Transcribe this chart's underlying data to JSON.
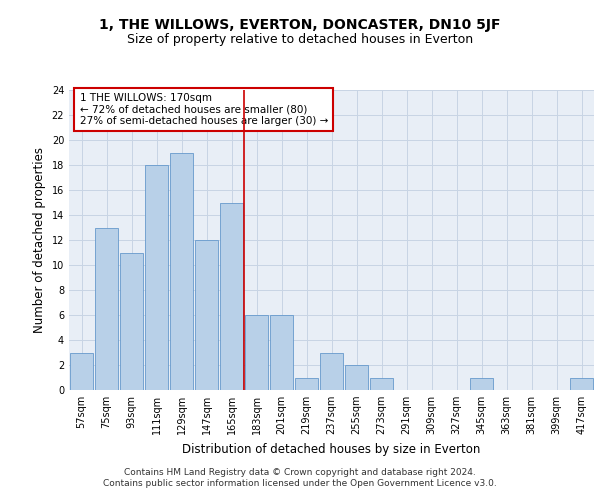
{
  "title": "1, THE WILLOWS, EVERTON, DONCASTER, DN10 5JF",
  "subtitle": "Size of property relative to detached houses in Everton",
  "xlabel": "Distribution of detached houses by size in Everton",
  "ylabel": "Number of detached properties",
  "bar_values": [
    3,
    13,
    11,
    18,
    19,
    12,
    15,
    6,
    6,
    1,
    3,
    2,
    1,
    0,
    0,
    0,
    1,
    0,
    0,
    0,
    1
  ],
  "categories": [
    "57sqm",
    "75sqm",
    "93sqm",
    "111sqm",
    "129sqm",
    "147sqm",
    "165sqm",
    "183sqm",
    "201sqm",
    "219sqm",
    "237sqm",
    "255sqm",
    "273sqm",
    "291sqm",
    "309sqm",
    "327sqm",
    "345sqm",
    "363sqm",
    "381sqm",
    "399sqm",
    "417sqm"
  ],
  "bar_color": "#b8d0e8",
  "bar_edge_color": "#6699cc",
  "grid_color": "#c8d4e4",
  "bg_color": "#e8eef6",
  "vline_x": 6.5,
  "vline_color": "#cc0000",
  "annotation_text": "1 THE WILLOWS: 170sqm\n← 72% of detached houses are smaller (80)\n27% of semi-detached houses are larger (30) →",
  "annotation_box_color": "#ffffff",
  "annotation_box_edge_color": "#cc0000",
  "ylim": [
    0,
    24
  ],
  "yticks": [
    0,
    2,
    4,
    6,
    8,
    10,
    12,
    14,
    16,
    18,
    20,
    22,
    24
  ],
  "footer_line1": "Contains HM Land Registry data © Crown copyright and database right 2024.",
  "footer_line2": "Contains public sector information licensed under the Open Government Licence v3.0.",
  "title_fontsize": 10,
  "subtitle_fontsize": 9,
  "axis_label_fontsize": 8.5,
  "tick_fontsize": 7,
  "footer_fontsize": 6.5,
  "annotation_fontsize": 7.5
}
